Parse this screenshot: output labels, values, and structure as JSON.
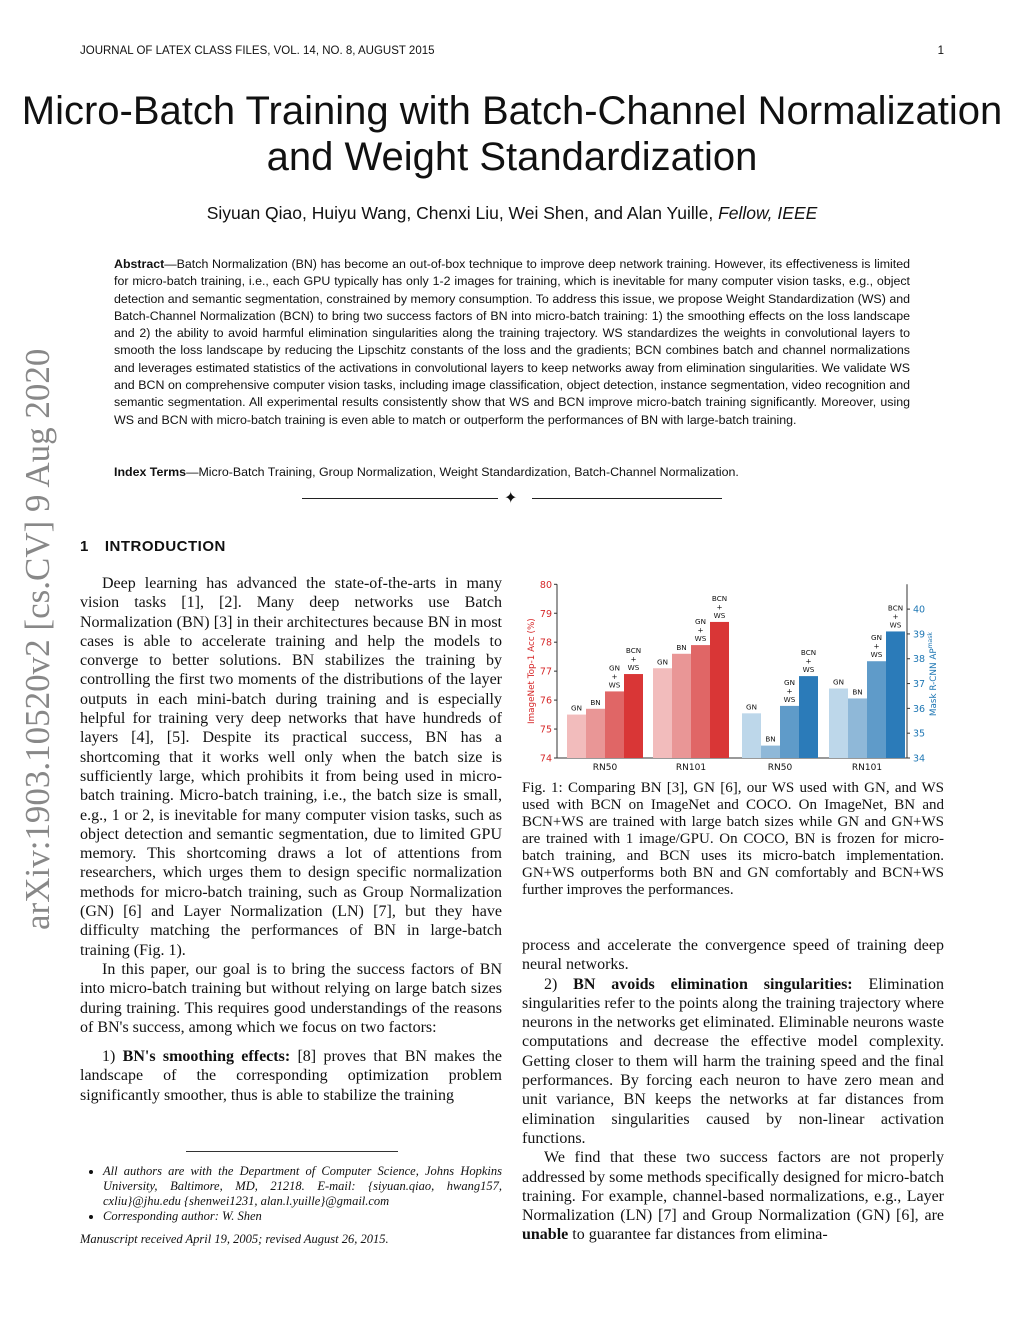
{
  "header": {
    "journal": "JOURNAL OF LATEX CLASS FILES, VOL. 14, NO. 8, AUGUST 2015",
    "page": "1"
  },
  "title": "Micro-Batch Training with Batch-Channel Normalization and Weight Standardization",
  "authors": "Siyuan Qiao, Huiyu Wang, Chenxi Liu, Wei Shen, and Alan Yuille,",
  "authors_fellow": "Fellow, IEEE",
  "arxiv_stamp": "arXiv:1903.10520v2  [cs.CV]  9 Aug 2020",
  "abstract": {
    "label": "Abstract",
    "text": "—Batch Normalization (BN) has become an out-of-box technique to improve deep network training. However, its effectiveness is limited for micro-batch training, i.e., each GPU typically has only 1-2 images for training, which is inevitable for many computer vision tasks, e.g., object detection and semantic segmentation, constrained by memory consumption. To address this issue, we propose Weight Standardization (WS) and Batch-Channel Normalization (BCN) to bring two success factors of BN into micro-batch training: 1) the smoothing effects on the loss landscape and 2) the ability to avoid harmful elimination singularities along the training trajectory. WS standardizes the weights in convolutional layers to smooth the loss landscape by reducing the Lipschitz constants of the loss and the gradients; BCN combines batch and channel normalizations and leverages estimated statistics of the activations in convolutional layers to keep networks away from elimination singularities. We validate WS and BCN on comprehensive computer vision tasks, including image classification, object detection, instance segmentation, video recognition and semantic segmentation. All experimental results consistently show that WS and BCN improve micro-batch training significantly. Moreover, using WS and BCN with micro-batch training is even able to match or outperform the performances of BN with large-batch training."
  },
  "index_terms": {
    "label": "Index Terms",
    "text": "—Micro-Batch Training, Group Normalization, Weight Standardization, Batch-Channel Normalization."
  },
  "section": {
    "number": "1",
    "title": "INTRODUCTION"
  },
  "left_column": [
    "Deep learning has advanced the state-of-the-arts in many vision tasks [1], [2]. Many deep networks use Batch Normalization (BN) [3] in their architectures because BN in most cases is able to accelerate training and help the models to converge to better solutions. BN stabilizes the training by controlling the first two moments of the distributions of the layer outputs in each mini-batch during training and is especially helpful for training very deep networks that have hundreds of layers [4], [5]. Despite its practical success, BN has a shortcoming that it works well only when the batch size is sufficiently large, which prohibits it from being used in micro-batch training. Micro-batch training, i.e., the batch size is small, e.g., 1 or 2, is inevitable for many computer vision tasks, such as object detection and semantic segmentation, due to limited GPU memory. This shortcoming draws a lot of attentions from researchers, which urges them to design specific normalization methods for micro-batch training, such as Group Normalization (GN) [6] and Layer Normalization (LN) [7], but they have difficulty matching the performances of BN in large-batch training (Fig. 1).",
    "In this paper, our goal is to bring the success factors of BN into micro-batch training but without relying on large batch sizes during training. This requires good understandings of the reasons of BN's success, among which we focus on two factors:"
  ],
  "item1": {
    "num": "1)",
    "bold": "BN's smoothing effects:",
    "text": " [8] proves that BN makes the landscape of the corresponding optimization problem significantly smoother, thus is able to stabilize the training"
  },
  "right_column": {
    "cont": "process and accelerate the convergence speed of training deep neural networks.",
    "item2": {
      "num": "2)",
      "bold": "BN avoids elimination singularities:",
      "text": " Elimination singularities refer to the points along the training trajectory where neurons in the networks get eliminated. Eliminable neurons waste computations and decrease the effective model complexity. Getting closer to them will harm the training speed and the final performances. By forcing each neuron to have zero mean and unit variance, BN keeps the networks at far distances from elimination singularities caused by non-linear activation functions."
    },
    "p3_a": "We find that these two success factors are not properly addressed by some methods specifically designed for micro-batch training. For example, channel-based normalizations, e.g., Layer Normalization (LN) [7] and Group Normalization (GN) [6], are ",
    "p3_bold": "unable",
    "p3_b": " to guarantee far distances from elimina-"
  },
  "caption": "Fig. 1: Comparing BN [3], GN [6], our WS used with GN, and WS used with BCN on ImageNet and COCO. On ImageNet, BN and BCN+WS are trained with large batch sizes while GN and GN+WS are trained with 1 image/GPU. On COCO, BN is frozen for micro-batch training, and BCN uses its micro-batch implementation. GN+WS outperforms both BN and GN comfortably and BCN+WS further improves the performances.",
  "footnotes": {
    "items": [
      "All authors are with the Department of Computer Science, Johns Hopkins University, Baltimore, MD, 21218. E-mail: {siyuan.qiao, hwang157, cxliu}@jhu.edu {shenwei1231, alan.l.yuille}@gmail.com",
      "Corresponding author: W. Shen"
    ],
    "manuscript": "Manuscript received April 19, 2005; revised August 26, 2015."
  },
  "chart_data": {
    "type": "bar",
    "left_axis": {
      "label": "ImageNet Top-1 Acc (%)",
      "ylim": [
        74,
        80
      ],
      "ticks": [
        "74",
        "75",
        "76",
        "77",
        "78",
        "79",
        "80"
      ],
      "color": "#d62728"
    },
    "right_axis": {
      "label": "Mask R-CNN AP",
      "label_sup": "mask",
      "ylim": [
        34,
        41
      ],
      "ticks": [
        "34",
        "35",
        "36",
        "37",
        "38",
        "39",
        "40"
      ],
      "color": "#1f77b4"
    },
    "categories": [
      "RN50",
      "RN101",
      "RN50",
      "RN101"
    ],
    "groups": [
      {
        "category": "RN50",
        "axis": "left",
        "bars": [
          {
            "label": "GN",
            "value": 75.5,
            "color": "#f2bcbc"
          },
          {
            "label": "BN",
            "value": 75.7,
            "color": "#e99696"
          },
          {
            "label": "GN + WS",
            "value": 76.3,
            "color": "#e06666"
          },
          {
            "label": "BCN + WS",
            "value": 76.9,
            "color": "#d93636"
          }
        ]
      },
      {
        "category": "RN101",
        "axis": "left",
        "bars": [
          {
            "label": "GN",
            "value": 77.1,
            "color": "#f2bcbc"
          },
          {
            "label": "BN",
            "value": 77.6,
            "color": "#e99696"
          },
          {
            "label": "GN + WS",
            "value": 77.9,
            "color": "#e06666"
          },
          {
            "label": "BCN + WS",
            "value": 78.7,
            "color": "#d93636"
          }
        ]
      },
      {
        "category": "RN50",
        "axis": "right",
        "bars": [
          {
            "label": "GN",
            "value": 35.8,
            "color": "#bdd7ea"
          },
          {
            "label": "BN",
            "value": 34.5,
            "color": "#8fb8d8"
          },
          {
            "label": "GN + WS",
            "value": 36.1,
            "color": "#5f9bc9"
          },
          {
            "label": "BCN + WS",
            "value": 37.3,
            "color": "#2b7bb9"
          }
        ]
      },
      {
        "category": "RN101",
        "axis": "right",
        "bars": [
          {
            "label": "GN",
            "value": 36.8,
            "color": "#bdd7ea"
          },
          {
            "label": "BN",
            "value": 36.4,
            "color": "#8fb8d8"
          },
          {
            "label": "GN + WS",
            "value": 37.9,
            "color": "#5f9bc9"
          },
          {
            "label": "BCN + WS",
            "value": 39.1,
            "color": "#2b7bb9"
          }
        ]
      }
    ]
  }
}
